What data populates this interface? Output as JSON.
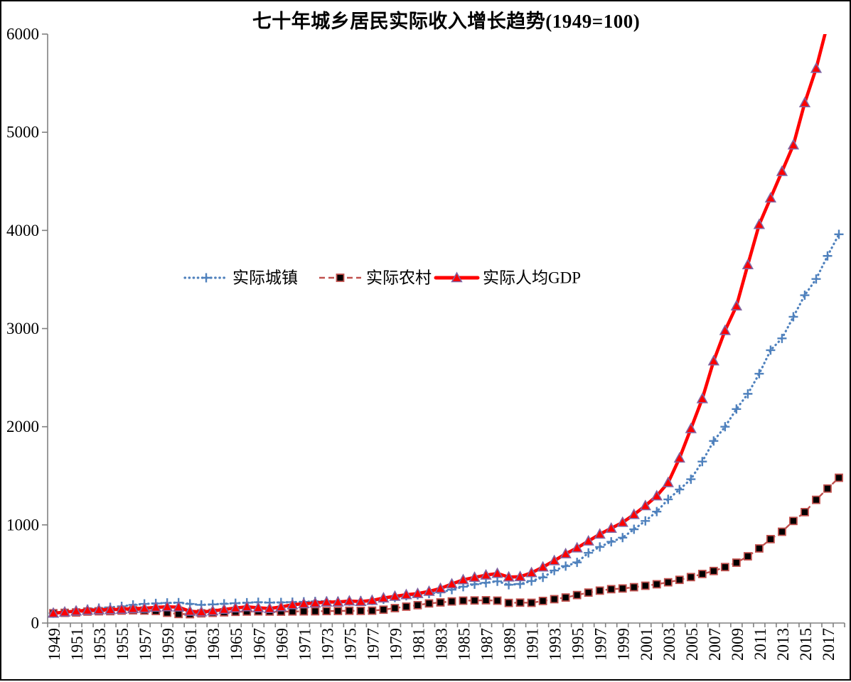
{
  "window": {
    "background": "#FFFFFF",
    "border_color": "#000000"
  },
  "chart_data": {
    "type": "line",
    "title": "七十年城乡居民实际收入增长趋势(1949=100)",
    "xlabel": "",
    "ylabel": "",
    "ylim": [
      0,
      6000
    ],
    "y_ticks": [
      0,
      1000,
      2000,
      3000,
      4000,
      5000,
      6000
    ],
    "grid": false,
    "legend_position": "inside-upper-left-of-center",
    "x": [
      1949,
      1950,
      1951,
      1952,
      1953,
      1954,
      1955,
      1956,
      1957,
      1958,
      1959,
      1960,
      1961,
      1962,
      1963,
      1964,
      1965,
      1966,
      1967,
      1968,
      1969,
      1970,
      1971,
      1972,
      1973,
      1974,
      1975,
      1976,
      1977,
      1978,
      1979,
      1980,
      1981,
      1982,
      1983,
      1984,
      1985,
      1986,
      1987,
      1988,
      1989,
      1990,
      1991,
      1992,
      1993,
      1994,
      1995,
      1996,
      1997,
      1998,
      1999,
      2000,
      2001,
      2002,
      2003,
      2004,
      2005,
      2006,
      2007,
      2008,
      2009,
      2010,
      2011,
      2012,
      2013,
      2014,
      2015,
      2016,
      2017,
      2018
    ],
    "x_tick_labels": [
      "1949",
      "1951",
      "1953",
      "1955",
      "1957",
      "1959",
      "1961",
      "1963",
      "1965",
      "1967",
      "1969",
      "1971",
      "1973",
      "1975",
      "1977",
      "1979",
      "1981",
      "1983",
      "1985",
      "1987",
      "1989",
      "1991",
      "1993",
      "1995",
      "1997",
      "1999",
      "2001",
      "2003",
      "2005",
      "2007",
      "2009",
      "2011",
      "2013",
      "2015",
      "2017"
    ],
    "series": [
      {
        "name": "实际城镇",
        "color": "#4F81BD",
        "line_style": "dotted",
        "marker": "plus",
        "values": [
          100,
          112,
          125,
          140,
          152,
          160,
          170,
          185,
          195,
          200,
          205,
          208,
          195,
          185,
          190,
          196,
          202,
          207,
          212,
          208,
          210,
          213,
          216,
          220,
          223,
          221,
          223,
          226,
          230,
          242,
          260,
          278,
          288,
          300,
          312,
          340,
          370,
          395,
          410,
          425,
          390,
          398,
          428,
          465,
          535,
          580,
          618,
          715,
          775,
          828,
          870,
          955,
          1040,
          1135,
          1260,
          1360,
          1465,
          1645,
          1855,
          2000,
          2180,
          2335,
          2540,
          2780,
          2900,
          3120,
          3340,
          3505,
          3740,
          3960
        ]
      },
      {
        "name": "实际农村",
        "color": "#C0504D",
        "line_style": "dashed",
        "marker": "square",
        "marker_fill": "#000000",
        "marker_border": "#C0504D",
        "values": [
          100,
          104,
          108,
          117,
          120,
          121,
          127,
          130,
          127,
          123,
          105,
          92,
          90,
          99,
          104,
          109,
          114,
          117,
          119,
          117,
          116,
          118,
          119,
          120,
          122,
          123,
          125,
          124,
          126,
          136,
          152,
          167,
          182,
          200,
          210,
          220,
          228,
          230,
          232,
          228,
          205,
          208,
          206,
          225,
          243,
          260,
          285,
          310,
          330,
          345,
          352,
          365,
          380,
          395,
          415,
          440,
          468,
          500,
          530,
          570,
          615,
          680,
          760,
          855,
          930,
          1040,
          1130,
          1255,
          1370,
          1480
        ]
      },
      {
        "name": "实际人均GDP",
        "color": "#FF0000",
        "line_style": "solid",
        "marker": "triangle",
        "marker_fill": "#FF0000",
        "marker_border": "#8064A2",
        "values": [
          100,
          111,
          122,
          130,
          134,
          136,
          140,
          147,
          150,
          160,
          165,
          162,
          120,
          113,
          123,
          138,
          153,
          165,
          155,
          148,
          164,
          186,
          197,
          204,
          214,
          214,
          224,
          219,
          230,
          255,
          272,
          288,
          300,
          322,
          352,
          398,
          440,
          465,
          488,
          505,
          468,
          472,
          512,
          570,
          635,
          705,
          765,
          835,
          905,
          965,
          1025,
          1105,
          1195,
          1295,
          1430,
          1680,
          1980,
          2285,
          2670,
          2980,
          3230,
          3650,
          4060,
          4330,
          4600,
          4870,
          5300,
          5650,
          6100,
          6550
        ]
      }
    ],
    "axis_color": "#808080"
  }
}
